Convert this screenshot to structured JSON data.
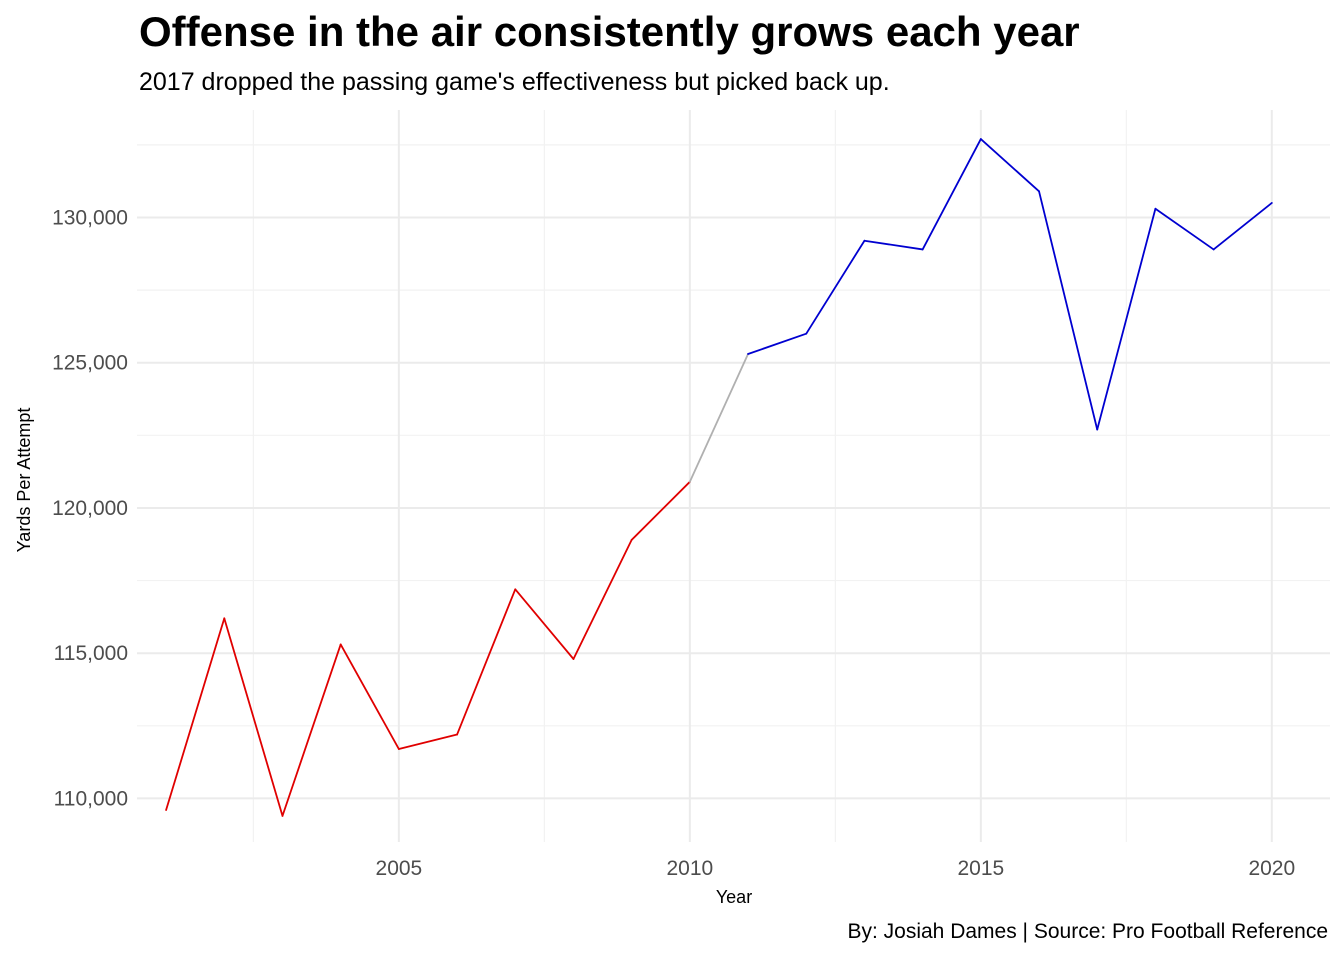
{
  "title": "Offense in the air consistently grows each year",
  "subtitle": "2017 dropped the passing game's effectiveness but picked back up.",
  "caption": "By: Josiah Dames | Source: Pro Football Reference",
  "chart_data": {
    "type": "line",
    "title": "Offense in the air consistently grows each year",
    "subtitle": "2017 dropped the passing game's effectiveness but picked back up.",
    "xlabel": "Year",
    "ylabel": "Yards Per Attempt",
    "x": [
      2001,
      2002,
      2003,
      2004,
      2005,
      2006,
      2007,
      2008,
      2009,
      2010,
      2011,
      2012,
      2013,
      2014,
      2015,
      2016,
      2017,
      2018,
      2019,
      2020
    ],
    "values": [
      109600,
      116200,
      109400,
      115300,
      111700,
      112200,
      117200,
      114800,
      118900,
      120900,
      125300,
      126000,
      129200,
      128900,
      132700,
      130900,
      122700,
      130300,
      128900,
      130500
    ],
    "segment_colors": [
      {
        "from": 2001,
        "to": 2010,
        "color": "#e00000"
      },
      {
        "from": 2010,
        "to": 2011,
        "color": "#b0b0b0"
      },
      {
        "from": 2011,
        "to": 2020,
        "color": "#0000d0"
      }
    ],
    "xlim": [
      2000.5,
      2021
    ],
    "ylim": [
      108500,
      133700
    ],
    "x_ticks": [
      2005,
      2010,
      2015,
      2020
    ],
    "x_tick_labels": [
      "2005",
      "2010",
      "2015",
      "2020"
    ],
    "y_ticks": [
      110000,
      115000,
      120000,
      125000,
      130000
    ],
    "y_tick_labels": [
      "110,000",
      "115,000",
      "120,000",
      "125,000",
      "130,000"
    ],
    "grid": true,
    "legend": "none"
  }
}
